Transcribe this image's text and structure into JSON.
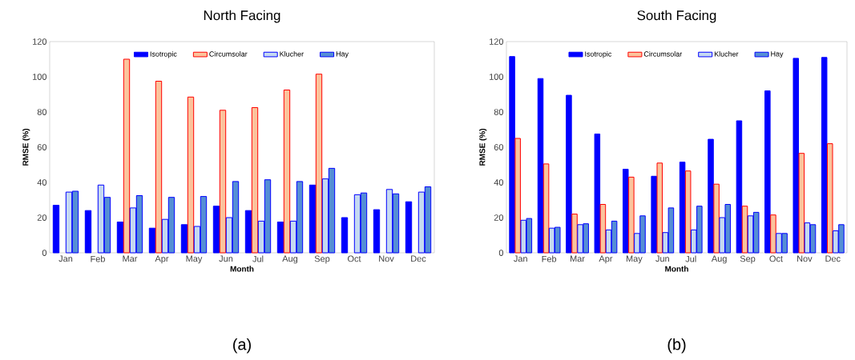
{
  "chart_data": [
    {
      "type": "bar",
      "title": "North Facing",
      "xlabel": "Month",
      "ylabel": "RMSE (%)",
      "annotations": [
        "(a)"
      ],
      "legend": "top",
      "grid": false,
      "categories": [
        "Jan",
        "Feb",
        "Mar",
        "Apr",
        "May",
        "Jun",
        "Jul",
        "Aug",
        "Sep",
        "Oct",
        "Nov",
        "Dec"
      ],
      "ylim": [
        0,
        120
      ],
      "yticks": [
        0,
        20,
        40,
        60,
        80,
        100,
        120
      ],
      "series": [
        {
          "name": "Isotropic",
          "color": "#0000ff",
          "values": [
            27,
            24,
            17.5,
            14,
            16,
            26.5,
            24,
            17.5,
            38.5,
            20,
            24.5,
            29
          ]
        },
        {
          "name": "Circumsolar",
          "color": "#fbc39c",
          "values": [
            null,
            null,
            110,
            97.5,
            88.5,
            81,
            82.5,
            92.5,
            101.5,
            null,
            null,
            null
          ]
        },
        {
          "name": "Klucher",
          "color": "#c5d9f1",
          "values": [
            34.5,
            38.5,
            25.5,
            19,
            15,
            20,
            18,
            18,
            42,
            33,
            36,
            34.5
          ]
        },
        {
          "name": "Hay",
          "color": "#558ed5",
          "values": [
            35,
            31.5,
            32.5,
            31.5,
            32,
            40.5,
            41.5,
            40.5,
            48,
            34,
            33.5,
            37.5
          ]
        }
      ]
    },
    {
      "type": "bar",
      "title": "South Facing",
      "xlabel": "Month",
      "ylabel": "RMSE (%)",
      "annotations": [
        "(b)"
      ],
      "legend": "top",
      "grid": false,
      "categories": [
        "Jan",
        "Feb",
        "Mar",
        "Apr",
        "May",
        "Jun",
        "Jul",
        "Aug",
        "Sep",
        "Oct",
        "Nov",
        "Dec"
      ],
      "ylim": [
        0,
        120
      ],
      "yticks": [
        0,
        20,
        40,
        60,
        80,
        100,
        120
      ],
      "series": [
        {
          "name": "Isotropic",
          "color": "#0000ff",
          "values": [
            111.5,
            99,
            89.5,
            67.5,
            47.5,
            43.5,
            51.5,
            64.5,
            75,
            92,
            110.5,
            111
          ]
        },
        {
          "name": "Circumsolar",
          "color": "#fbc39c",
          "values": [
            65,
            50.5,
            22,
            27.5,
            43,
            51,
            46.5,
            39,
            26.5,
            21.5,
            56.5,
            62
          ]
        },
        {
          "name": "Klucher",
          "color": "#c5d9f1",
          "values": [
            18.5,
            14,
            16,
            13,
            11,
            11.5,
            13,
            20,
            21,
            11,
            17,
            12.5
          ]
        },
        {
          "name": "Hay",
          "color": "#558ed5",
          "values": [
            19.5,
            14.5,
            16.5,
            18,
            21,
            25.5,
            26.5,
            27.5,
            23,
            11,
            16,
            16
          ]
        }
      ]
    }
  ]
}
